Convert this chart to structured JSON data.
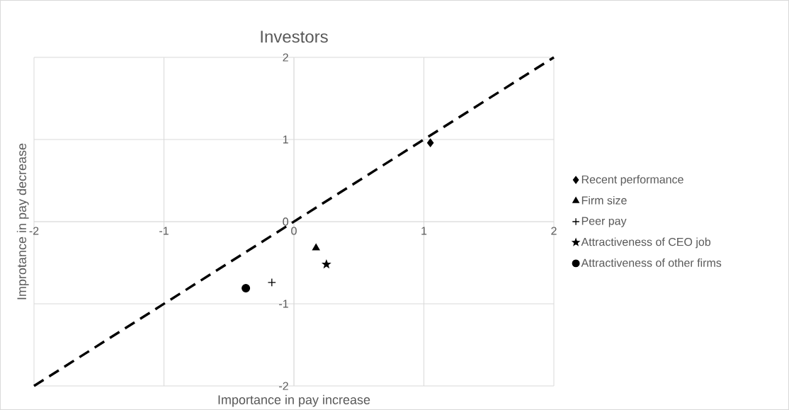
{
  "chart_data": {
    "type": "scatter",
    "title": "Investors",
    "xlabel": "Importance in pay increase",
    "ylabel": "Improtance in pay decrease",
    "xlim": [
      -2,
      2
    ],
    "ylim": [
      -2,
      2
    ],
    "xticks": [
      -2,
      -1,
      0,
      1,
      2
    ],
    "yticks": [
      -2,
      -1,
      0,
      1,
      2
    ],
    "grid": true,
    "legend": "right",
    "series": [
      {
        "name": "Recent performance",
        "color": "#000000",
        "marker": "diamond",
        "x": [
          1.05
        ],
        "values": [
          0.96
        ]
      },
      {
        "name": "Firm size",
        "color": "#000000",
        "marker": "triangle",
        "x": [
          0.17
        ],
        "values": [
          -0.32
        ]
      },
      {
        "name": "Peer pay",
        "color": "#000000",
        "marker": "cross",
        "x": [
          -0.17
        ],
        "values": [
          -0.74
        ]
      },
      {
        "name": "Attractiveness of CEO job",
        "color": "#000000",
        "marker": "star",
        "x": [
          0.25
        ],
        "values": [
          -0.52
        ]
      },
      {
        "name": "Attractiveness of other firms",
        "color": "#000000",
        "marker": "circle",
        "x": [
          -0.37
        ],
        "values": [
          -0.81
        ]
      },
      {
        "type": "line",
        "color": "#000000",
        "line_style": "dashed",
        "marker": "none",
        "x": [
          -2,
          2
        ],
        "values": [
          -2,
          2
        ]
      }
    ]
  }
}
